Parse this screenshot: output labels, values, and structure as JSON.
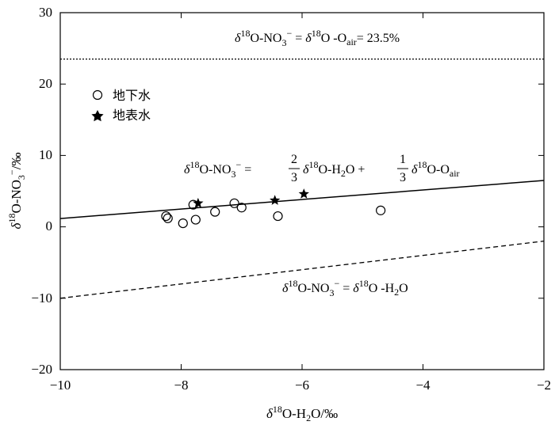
{
  "chart_data": {
    "type": "scatter",
    "xlabel": "δ18O-H2O/‰",
    "ylabel": "δ18O-NO3−/‰",
    "xlim": [
      -10,
      -2
    ],
    "ylim": [
      -20,
      30
    ],
    "xticks": [
      "−10",
      "−8",
      "−6",
      "−4",
      "−2"
    ],
    "yticks": [
      "−20",
      "−10",
      "0",
      "10",
      "20",
      "30"
    ],
    "grid": false,
    "legend_placement": "top-left",
    "series": [
      {
        "name": "地下水",
        "marker": "open-circle",
        "points": [
          [
            -8.25,
            1.5
          ],
          [
            -8.22,
            1.2
          ],
          [
            -7.97,
            0.5
          ],
          [
            -7.8,
            3.1
          ],
          [
            -7.76,
            1.0
          ],
          [
            -7.44,
            2.1
          ],
          [
            -7.12,
            3.3
          ],
          [
            -7.0,
            2.7
          ],
          [
            -6.4,
            1.5
          ],
          [
            -4.7,
            2.3
          ]
        ]
      },
      {
        "name": "地表水",
        "marker": "filled-star",
        "points": [
          [
            -7.72,
            3.3
          ],
          [
            -6.45,
            3.7
          ],
          [
            -5.97,
            4.6
          ]
        ]
      }
    ],
    "lines": [
      {
        "style": "dotted",
        "label": "δ18O-NO3− = δ18O -Oair = 23.5%",
        "y_const": 23.5
      },
      {
        "style": "solid",
        "label": "δ18O-NO3− = 2/3 δ18O-H2O + 1/3 δ18O-Oair",
        "slope": 0.6667,
        "intercept": 7.83
      },
      {
        "style": "dashed",
        "label": "δ18O-NO3− = δ18O -H2O",
        "slope": 1,
        "intercept": 0
      }
    ]
  },
  "text": {
    "legend_gw": "地下水",
    "legend_sw": "地表水",
    "eq_top": {
      "delta": "δ",
      "sup": "18",
      "a": "O-NO",
      "three": "3",
      "minus": "−",
      "b": " = ",
      "delta2": "δ",
      "sup2": "18",
      "c": "O -O",
      "air": "air",
      "d": "= 23.5%"
    },
    "eq_mid": {
      "delta": "δ",
      "sup": "18",
      "a": "O-NO",
      "three": "3",
      "minus": "−",
      "eq": " = ",
      "n2": "2",
      "d3a": "3",
      "delta2": "δ",
      "sup2": "18",
      "b": "O-H",
      "two": "2",
      "c": "O + ",
      "n1": "1",
      "d3b": "3",
      "delta3": "δ",
      "sup3": "18",
      "d": "O-O",
      "air": "air"
    },
    "eq_bot": {
      "delta": "δ",
      "sup": "18",
      "a": "O-NO",
      "three": "3",
      "minus": "−",
      "b": " = ",
      "delta2": "δ",
      "sup2": "18",
      "c": "O -H",
      "two": "2",
      "d": "O"
    },
    "xlabel": {
      "delta": "δ",
      "sup": "18",
      "a": "O-H",
      "two": "2",
      "b": "O/‰"
    },
    "ylabel": {
      "delta": "δ",
      "sup": "18",
      "a": "O-NO",
      "three": "3",
      "minus": "−",
      "b": "/‰"
    }
  }
}
